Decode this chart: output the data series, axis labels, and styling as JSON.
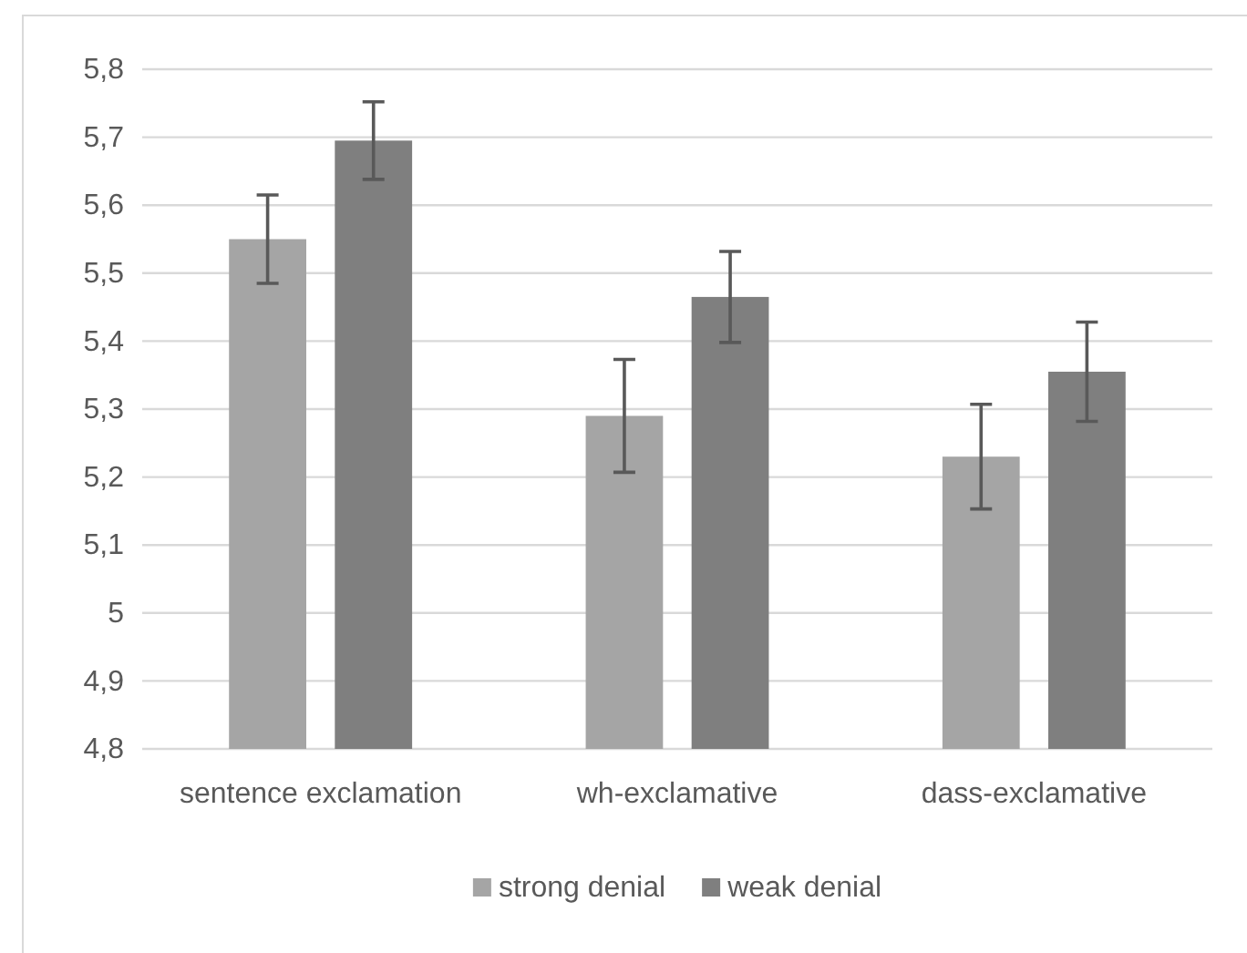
{
  "chart_data": {
    "type": "bar",
    "categories": [
      "sentence exclamation",
      "wh-exclamative",
      "dass-exclamative"
    ],
    "series": [
      {
        "name": "strong denial",
        "color": "#a5a5a5",
        "values": [
          5.55,
          5.29,
          5.23
        ],
        "errors": [
          0.065,
          0.083,
          0.077
        ]
      },
      {
        "name": "weak denial",
        "color": "#7f7f7f",
        "values": [
          5.695,
          5.465,
          5.355
        ],
        "errors": [
          0.057,
          0.067,
          0.073
        ]
      }
    ],
    "ylim": [
      4.8,
      5.8
    ],
    "yticks": [
      {
        "value": 4.8,
        "label": "4,8"
      },
      {
        "value": 4.9,
        "label": "4,9"
      },
      5,
      {
        "value": 5.1,
        "label": "5,1"
      },
      {
        "value": 5.2,
        "label": "5,2"
      },
      {
        "value": 5.3,
        "label": "5,3"
      },
      {
        "value": 5.4,
        "label": "5,4"
      },
      {
        "value": 5.5,
        "label": "5,5"
      },
      {
        "value": 5.6,
        "label": "5,6"
      },
      {
        "value": 5.7,
        "label": "5,7"
      },
      {
        "value": 5.8,
        "label": "5,8"
      }
    ],
    "grid": "y",
    "legend": "bottom"
  }
}
